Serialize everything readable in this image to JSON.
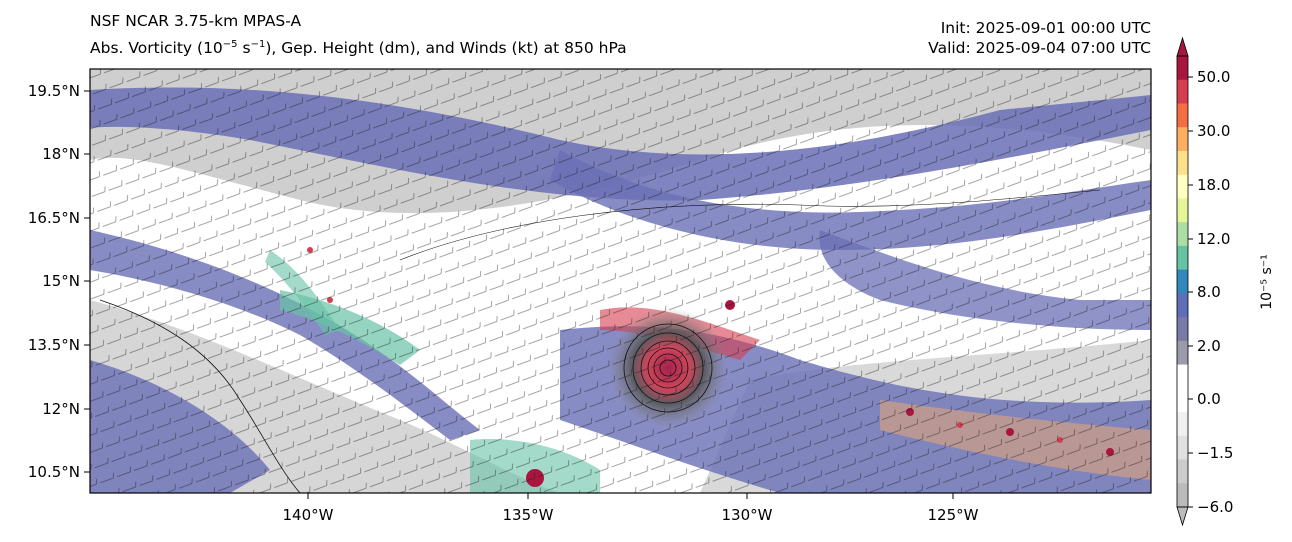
{
  "header": {
    "title": "NSF NCAR 3.75-km MPAS-A",
    "subtitle_prefix": "Abs. Vorticity (10",
    "subtitle_exp1": "−5",
    "subtitle_mid": " s",
    "subtitle_exp2": "−1",
    "subtitle_suffix": "), Gep. Height (dm), and Winds (kt) at 850 hPa",
    "init": "Init: 2025-09-01 00:00 UTC",
    "valid": "Valid: 2025-09-04 07:00 UTC"
  },
  "map": {
    "lon_ticks": [
      "140°W",
      "135°W",
      "130°W",
      "125°W"
    ],
    "lat_ticks": [
      "19.5°N",
      "18°N",
      "16.5°N",
      "15°N",
      "13.5°N",
      "12°N",
      "10.5°N"
    ],
    "cyclone_center": {
      "lon": -131.4,
      "lat": 12.9
    }
  },
  "colorbar": {
    "label": "10⁻⁵ s⁻¹",
    "tick_labels": [
      "50.0",
      "30.0",
      "18.0",
      "12.0",
      "8.0",
      "2.0",
      "0.0",
      "−1.5",
      "−6.0"
    ],
    "colors_top_to_bottom": [
      "#a8163f",
      "#d53e4f",
      "#f46d43",
      "#fdae61",
      "#fee08b",
      "#ffffbf",
      "#e6f598",
      "#abdda4",
      "#66c2a5",
      "#3288bd",
      "#5e6fb8",
      "#7a7aa8",
      "#9a9aaa",
      "#ffffff",
      "#ffffff",
      "#f0f0f0",
      "#e0e0e0",
      "#cccccc",
      "#bbbbbb"
    ]
  }
}
